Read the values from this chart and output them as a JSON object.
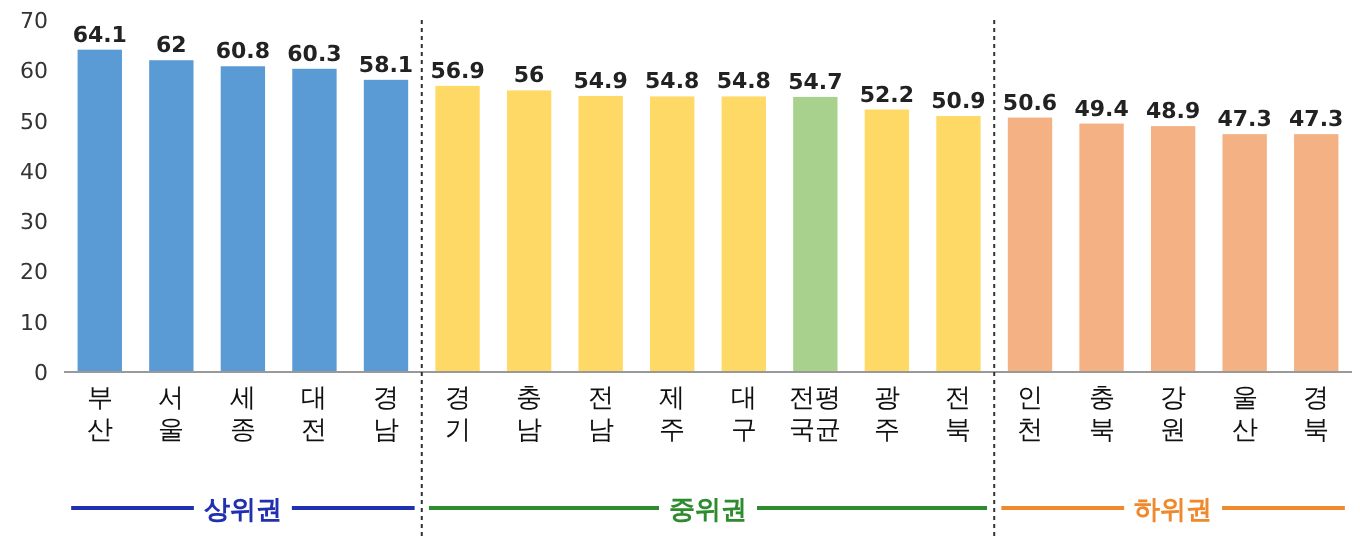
{
  "chart_data": {
    "type": "bar",
    "categories": [
      "부산",
      "서울",
      "세종",
      "대전",
      "경남",
      "경기",
      "충남",
      "전남",
      "제주",
      "대구",
      "전국평균",
      "광주",
      "전북",
      "인천",
      "충북",
      "강원",
      "울산",
      "경북"
    ],
    "values": [
      64.1,
      62,
      60.8,
      60.3,
      58.1,
      56.9,
      56,
      54.9,
      54.8,
      54.8,
      54.7,
      52.2,
      50.9,
      50.6,
      49.4,
      48.9,
      47.3,
      47.3
    ],
    "colors": [
      "#5b9bd5",
      "#5b9bd5",
      "#5b9bd5",
      "#5b9bd5",
      "#5b9bd5",
      "#ffd966",
      "#ffd966",
      "#ffd966",
      "#ffd966",
      "#ffd966",
      "#a9d18e",
      "#ffd966",
      "#ffd966",
      "#f4b183",
      "#f4b183",
      "#f4b183",
      "#f4b183",
      "#f4b183"
    ],
    "ylim": [
      0,
      70
    ],
    "yticks": [
      0,
      10,
      20,
      30,
      40,
      50,
      60,
      70
    ],
    "grid": false,
    "data_labels": true,
    "annotations": [
      "상위권",
      "중위권",
      "하위권"
    ]
  }
}
